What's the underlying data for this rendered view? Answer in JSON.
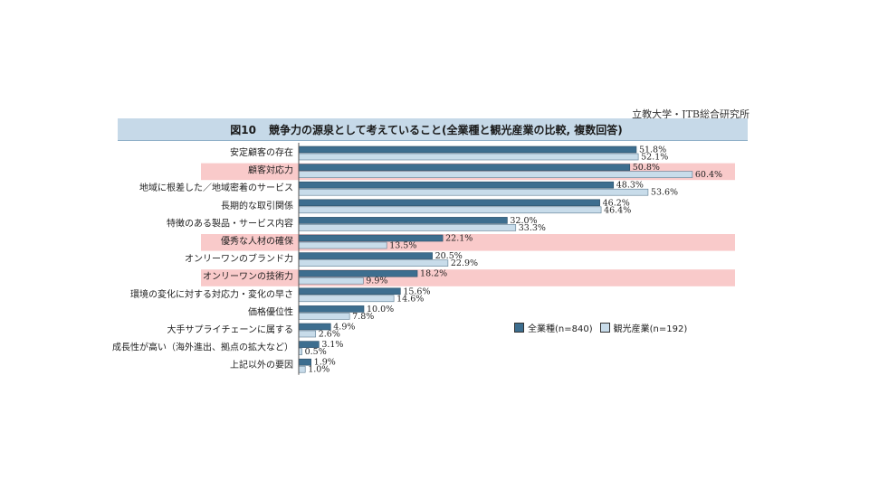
{
  "header": {
    "source": "立教大学・JTB総合研究所",
    "figure_no": "図10",
    "title": "競争力の源泉として考えていること(全業種と観光産業の比較, 複数回答)"
  },
  "colors": {
    "series1": "#3d6e8f",
    "series2": "#c8dcea",
    "highlight": "#f9caca"
  },
  "chart_data": {
    "type": "bar",
    "orientation": "horizontal",
    "categories": [
      "安定顧客の存在",
      "顧客対応力",
      "地域に根差した／地域密着のサービス",
      "長期的な取引関係",
      "特徴のある製品・サービス内容",
      "優秀な人材の確保",
      "オンリーワンのブランド力",
      "オンリーワンの技術力",
      "環境の変化に対する対応力・変化の早さ",
      "価格優位性",
      "大手サプライチェーンに属する",
      "成長性が高い（海外進出、拠点の拡大など）",
      "上記以外の要因"
    ],
    "highlighted": [
      false,
      true,
      false,
      false,
      false,
      true,
      false,
      true,
      false,
      false,
      false,
      false,
      false
    ],
    "series": [
      {
        "name": "全業種(n=840)",
        "values": [
          51.8,
          50.8,
          48.3,
          46.2,
          32.0,
          22.1,
          20.5,
          18.2,
          15.6,
          10.0,
          4.9,
          3.1,
          1.9
        ],
        "labels": [
          "51.8%",
          "50.8%",
          "48.3%",
          "46.2%",
          "32.0%",
          "22.1%",
          "20.5%",
          "18.2%",
          "15.6%",
          "10.0%",
          "4.9%",
          "3.1%",
          "1.9%"
        ]
      },
      {
        "name": "観光産業(n=192)",
        "values": [
          52.1,
          60.4,
          53.6,
          46.4,
          33.3,
          13.5,
          22.9,
          9.9,
          14.6,
          7.8,
          2.6,
          0.5,
          1.0
        ],
        "labels": [
          "52.1%",
          "60.4%",
          "53.6%",
          "46.4%",
          "33.3%",
          "13.5%",
          "22.9%",
          "9.9%",
          "14.6%",
          "7.8%",
          "2.6%",
          "0.5%",
          "1.0%"
        ]
      }
    ],
    "xlim": [
      0,
      70
    ],
    "legend_position": "bottom-right"
  }
}
